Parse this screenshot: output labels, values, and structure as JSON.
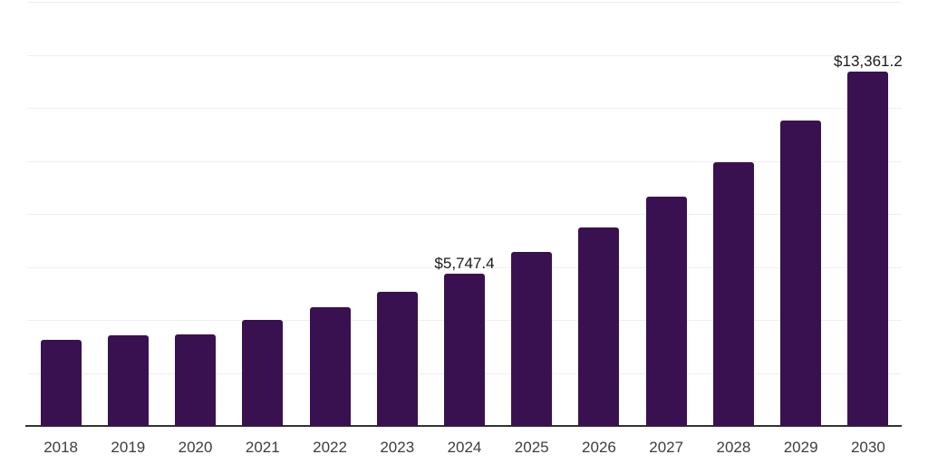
{
  "chart_data": {
    "type": "bar",
    "title": "",
    "xlabel": "",
    "ylabel": "",
    "categories": [
      "2018",
      "2019",
      "2020",
      "2021",
      "2022",
      "2023",
      "2024",
      "2025",
      "2026",
      "2027",
      "2028",
      "2029",
      "2030"
    ],
    "values": [
      3245,
      3420,
      3465,
      3990,
      4480,
      5055,
      5747.4,
      6560,
      7495,
      8635,
      9940,
      11515,
      13361.2
    ],
    "point_labels": [
      "",
      "",
      "",
      "",
      "",
      "",
      "$5,747.4",
      "",
      "",
      "",
      "",
      "",
      "$13,361.2"
    ],
    "ylim": [
      0,
      16000
    ],
    "gridline_step": 2000,
    "grid": "horizontal-only",
    "y_axis_labels_visible": false,
    "legend": "none",
    "colors": {
      "bar": "#3A1150",
      "gridline": "#EFEFEF",
      "axis_line": "#333333",
      "tick_label": "#3D3D3D",
      "data_label": "#1A1A1A",
      "background": "#FFFFFF"
    }
  }
}
